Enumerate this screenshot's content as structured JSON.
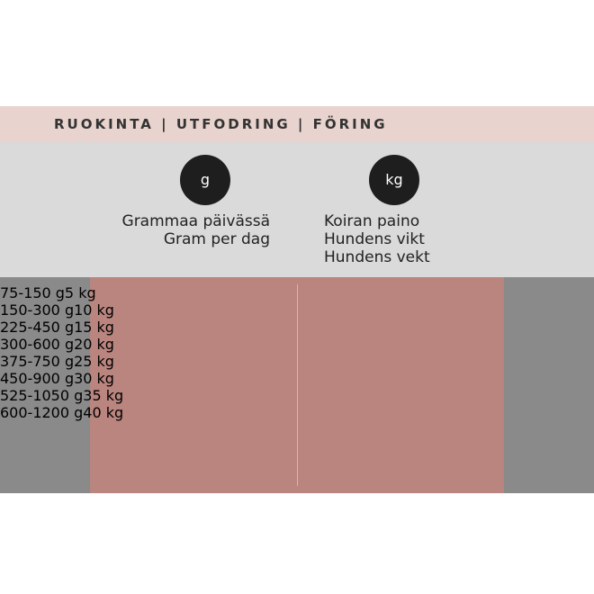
{
  "header": {
    "title": "RUOKINTA | UTFODRING | FÖRING"
  },
  "columns": [
    {
      "icon": "g",
      "labels": [
        "Grammaa päivässä",
        "Gram per dag"
      ]
    },
    {
      "icon": "kg",
      "labels": [
        "Koiran paino",
        "Hundens vikt",
        "Hundens vekt"
      ]
    }
  ],
  "table": {
    "rows": [
      [
        "75-150 g",
        "5 kg"
      ],
      [
        "150-300 g",
        "10 kg"
      ],
      [
        "225-450 g",
        "15 kg"
      ],
      [
        "300-600 g",
        "20 kg"
      ],
      [
        "375-750 g",
        "25 kg"
      ],
      [
        "450-900 g",
        "30 kg"
      ],
      [
        "525-1050 g",
        "35 kg"
      ],
      [
        "600-1200 g",
        "40 kg"
      ]
    ]
  }
}
